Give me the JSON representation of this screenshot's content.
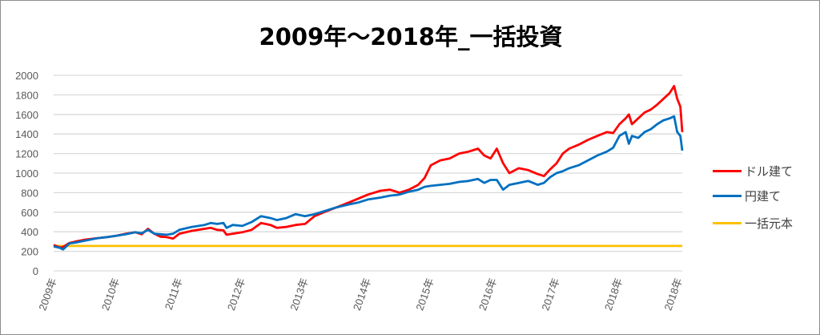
{
  "chart_data": {
    "type": "line",
    "title": "2009年～2018年_一括投資",
    "xlabel": "",
    "ylabel": "",
    "ylim": [
      0,
      2000
    ],
    "yticks": [
      0,
      200,
      400,
      600,
      800,
      1000,
      1200,
      1400,
      1600,
      1800,
      2000
    ],
    "xlim": [
      2009,
      2019
    ],
    "xtick_labels": [
      "2009年",
      "2010年",
      "2011年",
      "2012年",
      "2013年",
      "2014年",
      "2015年",
      "2016年",
      "2017年",
      "2018年",
      "2018年"
    ],
    "xtick_values": [
      2009,
      2010,
      2011,
      2012,
      2013,
      2014,
      2015,
      2016,
      2017,
      2018,
      2018.95
    ],
    "grid": true,
    "legend_position": "right",
    "series": [
      {
        "name": "ドル建て",
        "color": "#ff0000",
        "x": [
          2009,
          2009.1,
          2009.15,
          2009.25,
          2009.35,
          2009.5,
          2009.7,
          2009.85,
          2010,
          2010.15,
          2010.3,
          2010.4,
          2010.5,
          2010.6,
          2010.7,
          2010.8,
          2010.9,
          2011,
          2011.2,
          2011.4,
          2011.5,
          2011.6,
          2011.7,
          2011.75,
          2011.85,
          2012,
          2012.15,
          2012.3,
          2012.45,
          2012.55,
          2012.7,
          2012.85,
          2013,
          2013.15,
          2013.3,
          2013.5,
          2013.7,
          2013.85,
          2014,
          2014.2,
          2014.35,
          2014.5,
          2014.65,
          2014.8,
          2014.9,
          2015,
          2015.15,
          2015.3,
          2015.45,
          2015.6,
          2015.75,
          2015.85,
          2015.95,
          2016.05,
          2016.15,
          2016.25,
          2016.4,
          2016.55,
          2016.7,
          2016.8,
          2016.9,
          2017,
          2017.1,
          2017.2,
          2017.35,
          2017.5,
          2017.65,
          2017.8,
          2017.9,
          2018,
          2018.1,
          2018.15,
          2018.2,
          2018.3,
          2018.4,
          2018.5,
          2018.6,
          2018.7,
          2018.8,
          2018.87,
          2018.92,
          2018.97,
          2019
        ],
        "y": [
          265,
          240,
          245,
          285,
          300,
          320,
          335,
          345,
          360,
          380,
          395,
          375,
          430,
          380,
          350,
          345,
          330,
          380,
          410,
          430,
          440,
          420,
          415,
          370,
          380,
          395,
          420,
          490,
          470,
          440,
          450,
          470,
          480,
          560,
          600,
          650,
          700,
          740,
          780,
          820,
          830,
          800,
          830,
          880,
          950,
          1080,
          1130,
          1150,
          1200,
          1220,
          1250,
          1180,
          1150,
          1250,
          1100,
          1000,
          1050,
          1030,
          990,
          970,
          1040,
          1100,
          1200,
          1250,
          1290,
          1340,
          1380,
          1420,
          1410,
          1500,
          1560,
          1600,
          1500,
          1560,
          1620,
          1650,
          1700,
          1760,
          1820,
          1890,
          1760,
          1680,
          1420
        ]
      },
      {
        "name": "円建て",
        "color": "#0070c0",
        "x": [
          2009,
          2009.1,
          2009.15,
          2009.25,
          2009.35,
          2009.5,
          2009.7,
          2009.85,
          2010,
          2010.15,
          2010.3,
          2010.4,
          2010.5,
          2010.6,
          2010.7,
          2010.8,
          2010.9,
          2011,
          2011.2,
          2011.4,
          2011.5,
          2011.6,
          2011.7,
          2011.75,
          2011.85,
          2012,
          2012.15,
          2012.3,
          2012.45,
          2012.55,
          2012.7,
          2012.85,
          2013,
          2013.15,
          2013.3,
          2013.5,
          2013.7,
          2013.85,
          2014,
          2014.2,
          2014.35,
          2014.5,
          2014.65,
          2014.8,
          2014.9,
          2015,
          2015.15,
          2015.3,
          2015.45,
          2015.6,
          2015.75,
          2015.85,
          2015.95,
          2016.05,
          2016.15,
          2016.25,
          2016.4,
          2016.55,
          2016.7,
          2016.8,
          2016.9,
          2017,
          2017.1,
          2017.2,
          2017.35,
          2017.5,
          2017.65,
          2017.8,
          2017.9,
          2018,
          2018.1,
          2018.15,
          2018.2,
          2018.3,
          2018.4,
          2018.5,
          2018.6,
          2018.7,
          2018.8,
          2018.87,
          2018.92,
          2018.97,
          2019
        ],
        "y": [
          250,
          235,
          220,
          280,
          290,
          310,
          335,
          345,
          360,
          375,
          395,
          385,
          420,
          380,
          375,
          370,
          380,
          420,
          450,
          470,
          490,
          480,
          490,
          440,
          470,
          460,
          500,
          560,
          540,
          520,
          540,
          580,
          560,
          580,
          610,
          650,
          680,
          700,
          730,
          750,
          770,
          780,
          810,
          830,
          860,
          870,
          880,
          890,
          910,
          920,
          940,
          900,
          930,
          930,
          830,
          880,
          900,
          920,
          880,
          900,
          960,
          1000,
          1020,
          1050,
          1080,
          1130,
          1180,
          1220,
          1260,
          1380,
          1420,
          1300,
          1380,
          1360,
          1420,
          1450,
          1500,
          1540,
          1560,
          1580,
          1420,
          1380,
          1230
        ]
      },
      {
        "name": "一括元本",
        "color": "#ffc000",
        "x": [
          2009,
          2019
        ],
        "y": [
          255,
          255
        ]
      }
    ]
  }
}
